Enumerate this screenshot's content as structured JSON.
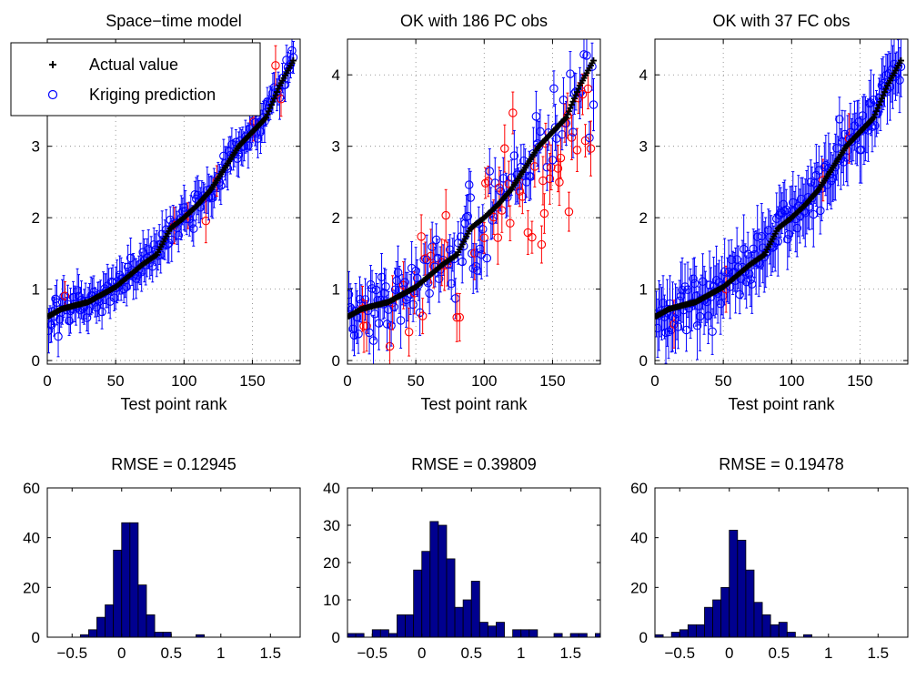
{
  "colors": {
    "actual": "#000000",
    "prediction": "#0000ff",
    "outlier": "#ff0000",
    "hist_fill": "#00008f",
    "grid": "#808080"
  },
  "legend": {
    "actual_label": "Actual value",
    "prediction_label": "Kriging prediction"
  },
  "chart_data": [
    {
      "type": "scatter",
      "title": "Space−time model",
      "xlabel": "Test point rank",
      "ylabel": "",
      "xlim": [
        0,
        185
      ],
      "ylim": [
        -0.05,
        4.5
      ],
      "xticks": [
        0,
        50,
        100,
        150
      ],
      "yticks": [
        0,
        1,
        2,
        3
      ],
      "grid": true,
      "legend": "top-left",
      "n_points": 180,
      "pred_noise_sd": 0.12,
      "err_halfwidth": 0.25,
      "error_bars": true,
      "outlier_count": 8,
      "actual_anchors": {
        "rank": [
          1,
          10,
          30,
          50,
          70,
          80,
          90,
          100,
          110,
          120,
          130,
          140,
          150,
          160,
          170,
          180
        ],
        "value": [
          0.62,
          0.72,
          0.82,
          1.03,
          1.35,
          1.48,
          1.85,
          2.0,
          2.18,
          2.4,
          2.7,
          3.0,
          3.2,
          3.4,
          3.85,
          4.2
        ]
      },
      "series": [
        {
          "name": "Actual value",
          "marker": "+"
        },
        {
          "name": "Kriging prediction",
          "marker": "o"
        }
      ]
    },
    {
      "type": "scatter",
      "title": "OK with 186 PC obs",
      "xlabel": "Test point rank",
      "ylabel": "",
      "xlim": [
        0,
        185
      ],
      "ylim": [
        -0.05,
        4.5
      ],
      "xticks": [
        0,
        50,
        100,
        150
      ],
      "yticks": [
        0,
        1,
        2,
        3,
        4
      ],
      "grid": true,
      "n_points": 180,
      "pred_noise_sd": 0.32,
      "err_halfwidth": 0.3,
      "error_bars": true,
      "outlier_count": 55,
      "actual_anchors": {
        "rank": [
          1,
          10,
          30,
          50,
          70,
          80,
          90,
          100,
          110,
          120,
          130,
          140,
          150,
          160,
          170,
          180
        ],
        "value": [
          0.62,
          0.72,
          0.82,
          1.03,
          1.35,
          1.48,
          1.85,
          2.0,
          2.18,
          2.4,
          2.7,
          3.0,
          3.2,
          3.4,
          3.85,
          4.2
        ]
      },
      "series": [
        {
          "name": "Actual value",
          "marker": "+"
        },
        {
          "name": "Kriging prediction",
          "marker": "o"
        }
      ]
    },
    {
      "type": "scatter",
      "title": "OK with 37 FC obs",
      "xlabel": "Test point rank",
      "ylabel": "",
      "xlim": [
        0,
        185
      ],
      "ylim": [
        -0.05,
        4.5
      ],
      "xticks": [
        0,
        50,
        100,
        150
      ],
      "yticks": [
        0,
        1,
        2,
        3,
        4
      ],
      "grid": true,
      "n_points": 180,
      "pred_noise_sd": 0.18,
      "err_halfwidth": 0.38,
      "error_bars": true,
      "outlier_count": 4,
      "actual_anchors": {
        "rank": [
          1,
          10,
          30,
          50,
          70,
          80,
          90,
          100,
          110,
          120,
          130,
          140,
          150,
          160,
          170,
          180
        ],
        "value": [
          0.62,
          0.72,
          0.82,
          1.03,
          1.35,
          1.48,
          1.85,
          2.0,
          2.18,
          2.4,
          2.7,
          3.0,
          3.2,
          3.4,
          3.85,
          4.2
        ]
      },
      "series": [
        {
          "name": "Actual value",
          "marker": "+"
        },
        {
          "name": "Kriging prediction",
          "marker": "o"
        }
      ]
    },
    {
      "type": "bar",
      "title": "RMSE = 0.12945",
      "xlabel": "",
      "ylabel": "",
      "xlim": [
        -0.75,
        1.8
      ],
      "ylim": [
        0,
        60
      ],
      "xticks": [
        -0.5,
        0,
        0.5,
        1,
        1.5
      ],
      "xtick_labels": [
        "−0.5",
        "0",
        "0.5",
        "1",
        "1.5"
      ],
      "yticks": [
        0,
        20,
        40,
        60
      ],
      "grid": false,
      "bin_width": 0.0833,
      "bin_edges_start": -0.5,
      "counts": [
        0,
        1,
        3,
        8,
        13,
        35,
        46,
        46,
        21,
        9,
        2,
        2,
        0,
        0,
        0,
        1
      ]
    },
    {
      "type": "bar",
      "title": "RMSE = 0.39809",
      "xlabel": "",
      "ylabel": "",
      "xlim": [
        -0.75,
        1.8
      ],
      "ylim": [
        0,
        40
      ],
      "xticks": [
        -0.5,
        0,
        0.5,
        1,
        1.5
      ],
      "xtick_labels": [
        "−0.5",
        "0",
        "0.5",
        "1",
        "1.5"
      ],
      "yticks": [
        0,
        10,
        20,
        30,
        40
      ],
      "grid": false,
      "bin_width": 0.0833,
      "bin_edges_start": -0.75,
      "counts": [
        1,
        1,
        0,
        2,
        2,
        1,
        6,
        6,
        18,
        23,
        31,
        30,
        21,
        8,
        10,
        15,
        4,
        3,
        4,
        0,
        2,
        2,
        2,
        0,
        0,
        1,
        0,
        1,
        1,
        0,
        1
      ]
    },
    {
      "type": "bar",
      "title": "RMSE = 0.19478",
      "xlabel": "",
      "ylabel": "",
      "xlim": [
        -0.75,
        1.8
      ],
      "ylim": [
        0,
        60
      ],
      "xticks": [
        -0.5,
        0,
        0.5,
        1,
        1.5
      ],
      "xtick_labels": [
        "−0.5",
        "0",
        "0.5",
        "1",
        "1.5"
      ],
      "yticks": [
        0,
        20,
        40,
        60
      ],
      "grid": false,
      "bin_width": 0.0833,
      "bin_edges_start": -0.75,
      "counts": [
        1,
        0,
        2,
        3,
        5,
        5,
        12,
        15,
        20,
        43,
        39,
        27,
        14,
        9,
        5,
        6,
        2,
        0,
        1
      ]
    }
  ]
}
